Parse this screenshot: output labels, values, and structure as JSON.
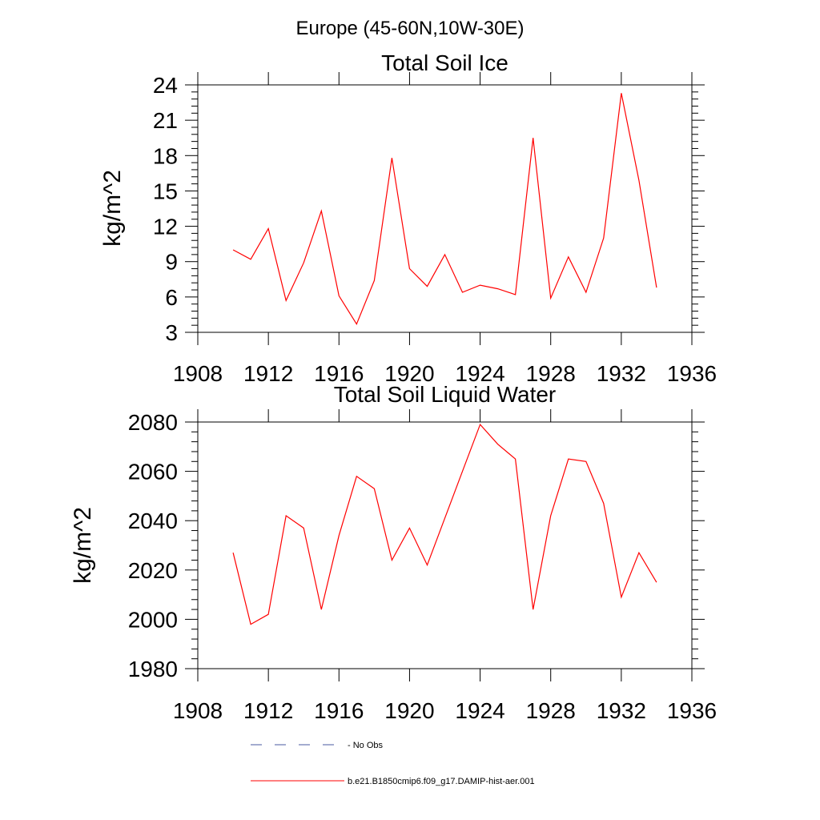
{
  "suptitle": "Europe (45-60N,10W-30E)",
  "legend": {
    "entries": [
      {
        "label": "No Obs",
        "style": "dashed",
        "color": "#4a5aa0"
      },
      {
        "label": "b.e21.B1850cmip6.f09_g17.DAMIP-hist-aer.001",
        "style": "solid",
        "color": "#ff0000"
      }
    ]
  },
  "chart_data": [
    {
      "type": "line",
      "title": "Total Soil Ice",
      "ylabel": "kg/m^2",
      "xlim": [
        1908,
        1936
      ],
      "ylim": [
        3,
        24
      ],
      "xticks": [
        1908,
        1912,
        1916,
        1920,
        1924,
        1928,
        1932,
        1936
      ],
      "yticks": [
        3,
        6,
        9,
        12,
        15,
        18,
        21,
        24
      ],
      "x": [
        1910,
        1911,
        1912,
        1913,
        1914,
        1915,
        1916,
        1917,
        1918,
        1919,
        1920,
        1921,
        1922,
        1923,
        1924,
        1925,
        1926,
        1927,
        1928,
        1929,
        1930,
        1931,
        1932,
        1933,
        1934
      ],
      "series": [
        {
          "name": "b.e21.B1850cmip6.f09_g17.DAMIP-hist-aer.001",
          "color": "#ff0000",
          "values": [
            10.0,
            9.2,
            11.8,
            5.7,
            8.9,
            13.3,
            6.1,
            3.7,
            7.4,
            17.8,
            8.4,
            6.9,
            9.6,
            6.4,
            7.0,
            6.7,
            6.2,
            19.5,
            5.9,
            9.4,
            6.4,
            11.0,
            23.3,
            15.9,
            6.8
          ]
        }
      ]
    },
    {
      "type": "line",
      "title": "Total Soil Liquid Water",
      "ylabel": "kg/m^2",
      "xlim": [
        1908,
        1936
      ],
      "ylim": [
        1980,
        2080
      ],
      "xticks": [
        1908,
        1912,
        1916,
        1920,
        1924,
        1928,
        1932,
        1936
      ],
      "yticks": [
        1980,
        2000,
        2020,
        2040,
        2060,
        2080
      ],
      "x": [
        1910,
        1911,
        1912,
        1913,
        1914,
        1915,
        1916,
        1917,
        1918,
        1919,
        1920,
        1921,
        1922,
        1923,
        1924,
        1925,
        1926,
        1927,
        1928,
        1929,
        1930,
        1931,
        1932,
        1933,
        1934
      ],
      "series": [
        {
          "name": "b.e21.B1850cmip6.f09_g17.DAMIP-hist-aer.001",
          "color": "#ff0000",
          "values": [
            2027,
            1998,
            2002,
            2042,
            2037,
            2004,
            2034,
            2058,
            2053,
            2024,
            2037,
            2022,
            2041,
            2060,
            2079,
            2071,
            2065,
            2004,
            2042,
            2065,
            2064,
            2047,
            2009,
            2027,
            2015
          ]
        }
      ]
    }
  ]
}
